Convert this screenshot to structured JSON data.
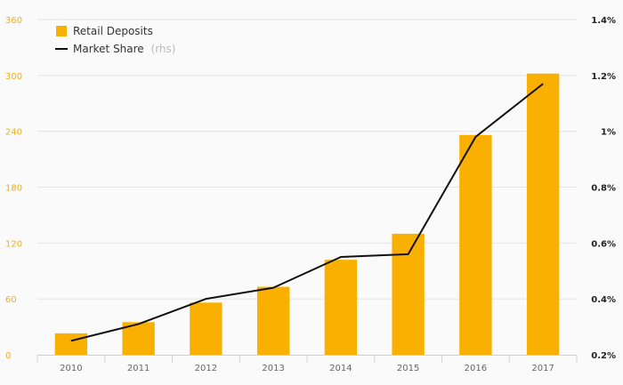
{
  "chart_data": {
    "type": "bar",
    "categories": [
      "2010",
      "2011",
      "2012",
      "2013",
      "2014",
      "2015",
      "2016",
      "2017"
    ],
    "series": [
      {
        "name": "Retail Deposits",
        "type": "bar",
        "axis": "left",
        "values": [
          23,
          35,
          56,
          73,
          102,
          130,
          236,
          302
        ]
      },
      {
        "name": "Market Share",
        "name_suffix": "(rhs)",
        "type": "line",
        "axis": "right",
        "values": [
          0.25,
          0.31,
          0.4,
          0.44,
          0.55,
          0.56,
          0.98,
          1.17
        ]
      }
    ],
    "y_left": {
      "range": [
        0,
        360
      ],
      "ticks": [
        "0",
        "60",
        "120",
        "180",
        "240",
        "300",
        "360"
      ]
    },
    "y_right": {
      "range": [
        0.2,
        1.4
      ],
      "ticks": [
        "0.2%",
        "0.4%",
        "0.6%",
        "0.8%",
        "1%",
        "1.2%",
        "1.4%"
      ]
    },
    "grid": true,
    "legend": "top-left"
  },
  "colors": {
    "bar": "#f9b000",
    "line": "#111111",
    "grid": "#e4e4e4",
    "left_ticks": "#f5b000",
    "right_ticks": "#222222"
  }
}
